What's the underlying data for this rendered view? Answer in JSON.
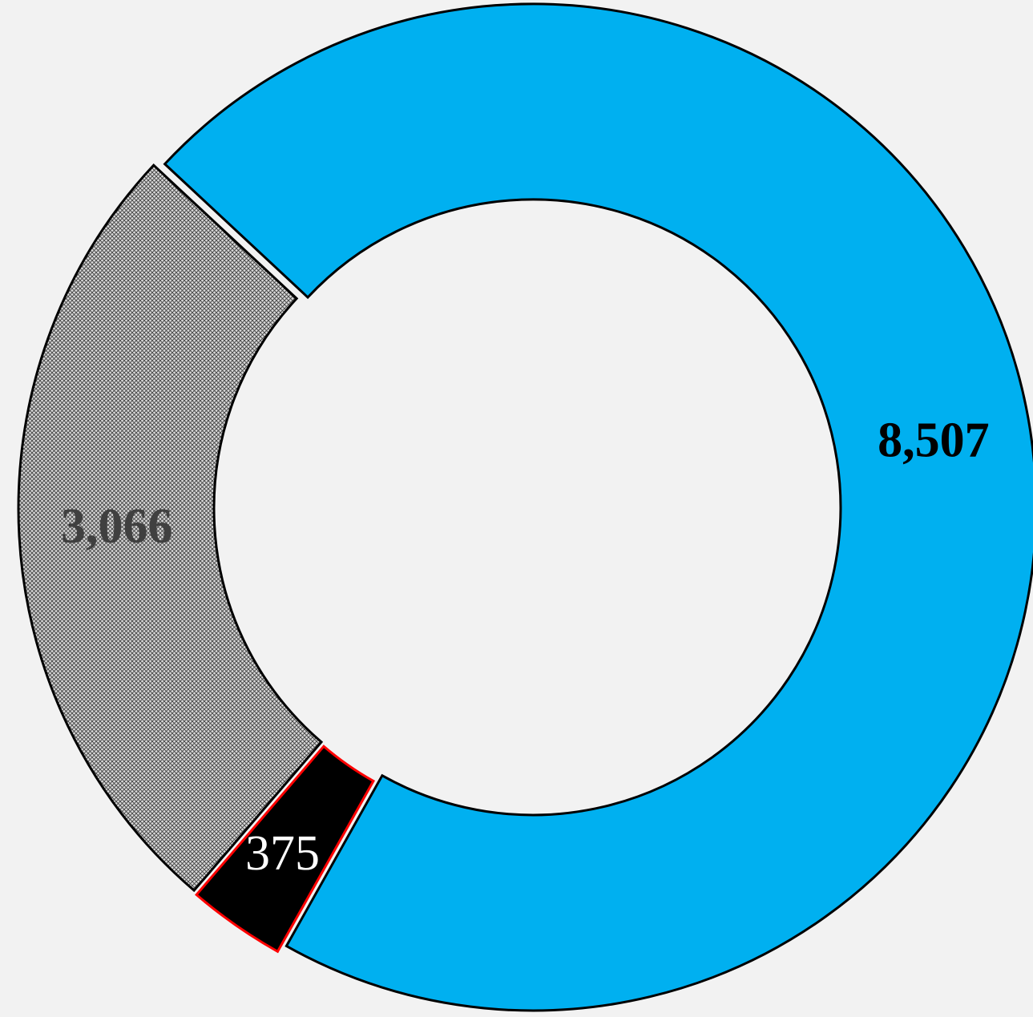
{
  "chart_data": {
    "type": "donut",
    "values": [
      8507,
      375,
      3066
    ],
    "value_labels": [
      "8,507",
      "375",
      "3,066"
    ],
    "colors": [
      "#00b0f0",
      "#000000",
      "#a6a6a6"
    ],
    "edge_colors": [
      "#000000",
      "#ff0000",
      "#000000"
    ],
    "hatch": [
      false,
      false,
      true
    ],
    "label_colors": [
      "#000000",
      "#ffffff",
      "#404040"
    ],
    "label_bold": [
      true,
      false,
      true
    ]
  }
}
